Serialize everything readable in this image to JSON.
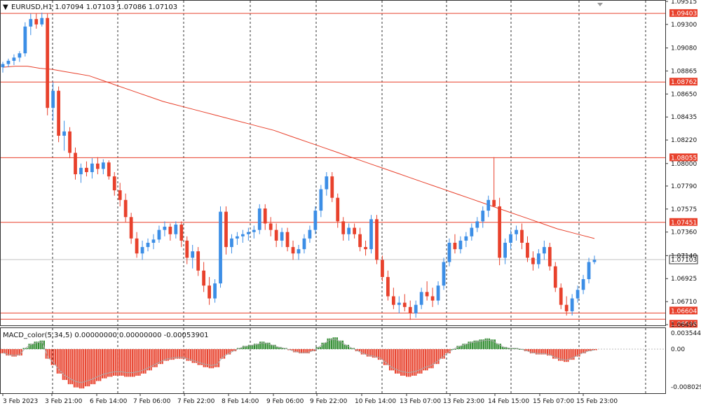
{
  "header": {
    "symbol_line": "EURUSD,H1  1.07094 1.07103 1.07086 1.07103"
  },
  "macd": {
    "label": "MACD_color(5,34,5) 0.00000000 0.00000000 -0.00053901",
    "axis": [
      "0.0035448",
      "0.00",
      "-0.0080295"
    ]
  },
  "price_axis": [
    "1.09515",
    "1.09300",
    "1.09080",
    "1.08865",
    "1.08650",
    "1.08435",
    "1.08220",
    "1.08000",
    "1.07790",
    "1.07575",
    "1.07360",
    "1.07140",
    "1.06925",
    "1.06710",
    "1.06495"
  ],
  "time_axis": [
    "3 Feb 2023",
    "3 Feb 21:00",
    "6 Feb 14:00",
    "7 Feb 06:00",
    "7 Feb 22:00",
    "8 Feb 14:00",
    "9 Feb 06:00",
    "9 Feb 22:00",
    "10 Feb 14:00",
    "13 Feb 07:00",
    "13 Feb 23:00",
    "14 Feb 15:00",
    "15 Feb 07:00",
    "15 Feb 23:00"
  ],
  "levels": [
    {
      "label": "1.09403",
      "price": 1.09403
    },
    {
      "label": "1.08762",
      "price": 1.08762
    },
    {
      "label": "1.08055",
      "price": 1.08055
    },
    {
      "label": "1.07451",
      "price": 1.07451
    },
    {
      "label": "1.06604",
      "price": 1.06604
    },
    {
      "label": "1.06546",
      "price": 1.06546
    }
  ],
  "current_price": {
    "label": "1.07103",
    "price": 1.07103
  },
  "colors": {
    "bull": "#3c8ee6",
    "bear": "#e8412c",
    "level": "#e8412c",
    "ma": "#e8412c",
    "macd_pos": "#2e8b2e",
    "macd_neg": "#e8412c",
    "grid": "#333333"
  },
  "chart_data": {
    "type": "candlestick",
    "title": "EURUSD,H1",
    "ylim": [
      1.06495,
      1.09515
    ],
    "candles": [
      {
        "o": 1.089,
        "h": 1.0895,
        "l": 1.0885,
        "c": 1.0893
      },
      {
        "o": 1.0893,
        "h": 1.0898,
        "l": 1.089,
        "c": 1.0896
      },
      {
        "o": 1.0896,
        "h": 1.0902,
        "l": 1.0892,
        "c": 1.0899
      },
      {
        "o": 1.0899,
        "h": 1.0905,
        "l": 1.0895,
        "c": 1.0903
      },
      {
        "o": 1.0903,
        "h": 1.0932,
        "l": 1.09,
        "c": 1.0928
      },
      {
        "o": 1.0928,
        "h": 1.094,
        "l": 1.092,
        "c": 1.0935
      },
      {
        "o": 1.0935,
        "h": 1.094,
        "l": 1.0926,
        "c": 1.093
      },
      {
        "o": 1.093,
        "h": 1.0941,
        "l": 1.0928,
        "c": 1.0936
      },
      {
        "o": 1.0936,
        "h": 1.094,
        "l": 1.0845,
        "c": 1.0852
      },
      {
        "o": 1.0852,
        "h": 1.0876,
        "l": 1.084,
        "c": 1.0868
      },
      {
        "o": 1.0868,
        "h": 1.0872,
        "l": 1.082,
        "c": 1.0826
      },
      {
        "o": 1.0826,
        "h": 1.084,
        "l": 1.0812,
        "c": 1.083
      },
      {
        "o": 1.083,
        "h": 1.0834,
        "l": 1.0805,
        "c": 1.081
      },
      {
        "o": 1.081,
        "h": 1.0815,
        "l": 1.0785,
        "c": 1.079
      },
      {
        "o": 1.079,
        "h": 1.08,
        "l": 1.0782,
        "c": 1.0796
      },
      {
        "o": 1.0796,
        "h": 1.0802,
        "l": 1.0788,
        "c": 1.0792
      },
      {
        "o": 1.0792,
        "h": 1.0805,
        "l": 1.0786,
        "c": 1.08
      },
      {
        "o": 1.08,
        "h": 1.0806,
        "l": 1.079,
        "c": 1.0795
      },
      {
        "o": 1.0795,
        "h": 1.0804,
        "l": 1.079,
        "c": 1.0801
      },
      {
        "o": 1.0801,
        "h": 1.0803,
        "l": 1.0785,
        "c": 1.0788
      },
      {
        "o": 1.0788,
        "h": 1.0792,
        "l": 1.077,
        "c": 1.0775
      },
      {
        "o": 1.0775,
        "h": 1.0782,
        "l": 1.076,
        "c": 1.0766
      },
      {
        "o": 1.0766,
        "h": 1.0772,
        "l": 1.0745,
        "c": 1.075
      },
      {
        "o": 1.075,
        "h": 1.0754,
        "l": 1.0725,
        "c": 1.073
      },
      {
        "o": 1.073,
        "h": 1.0736,
        "l": 1.0712,
        "c": 1.0716
      },
      {
        "o": 1.0716,
        "h": 1.0728,
        "l": 1.071,
        "c": 1.0722
      },
      {
        "o": 1.0722,
        "h": 1.073,
        "l": 1.0718,
        "c": 1.0726
      },
      {
        "o": 1.0726,
        "h": 1.0734,
        "l": 1.072,
        "c": 1.0729
      },
      {
        "o": 1.0729,
        "h": 1.0742,
        "l": 1.0726,
        "c": 1.0738
      },
      {
        "o": 1.0738,
        "h": 1.0746,
        "l": 1.0732,
        "c": 1.0741
      },
      {
        "o": 1.0741,
        "h": 1.0744,
        "l": 1.0728,
        "c": 1.0734
      },
      {
        "o": 1.0734,
        "h": 1.0746,
        "l": 1.073,
        "c": 1.0743
      },
      {
        "o": 1.0743,
        "h": 1.0746,
        "l": 1.0722,
        "c": 1.0728
      },
      {
        "o": 1.0728,
        "h": 1.0732,
        "l": 1.0706,
        "c": 1.0712
      },
      {
        "o": 1.0712,
        "h": 1.0724,
        "l": 1.0702,
        "c": 1.0718
      },
      {
        "o": 1.0718,
        "h": 1.0722,
        "l": 1.0695,
        "c": 1.07
      },
      {
        "o": 1.07,
        "h": 1.0708,
        "l": 1.068,
        "c": 1.0686
      },
      {
        "o": 1.0686,
        "h": 1.0694,
        "l": 1.0668,
        "c": 1.0674
      },
      {
        "o": 1.0674,
        "h": 1.0692,
        "l": 1.067,
        "c": 1.0688
      },
      {
        "o": 1.0688,
        "h": 1.076,
        "l": 1.0684,
        "c": 1.0755
      },
      {
        "o": 1.0755,
        "h": 1.076,
        "l": 1.0715,
        "c": 1.0722
      },
      {
        "o": 1.0722,
        "h": 1.0734,
        "l": 1.0716,
        "c": 1.073
      },
      {
        "o": 1.073,
        "h": 1.0736,
        "l": 1.0724,
        "c": 1.0732
      },
      {
        "o": 1.0732,
        "h": 1.0738,
        "l": 1.0726,
        "c": 1.0734
      },
      {
        "o": 1.0734,
        "h": 1.074,
        "l": 1.0728,
        "c": 1.0736
      },
      {
        "o": 1.0736,
        "h": 1.0742,
        "l": 1.073,
        "c": 1.0738
      },
      {
        "o": 1.0738,
        "h": 1.0762,
        "l": 1.0734,
        "c": 1.0758
      },
      {
        "o": 1.0758,
        "h": 1.0762,
        "l": 1.0738,
        "c": 1.0744
      },
      {
        "o": 1.0744,
        "h": 1.075,
        "l": 1.0732,
        "c": 1.0738
      },
      {
        "o": 1.0738,
        "h": 1.0744,
        "l": 1.0722,
        "c": 1.0728
      },
      {
        "o": 1.0728,
        "h": 1.074,
        "l": 1.0722,
        "c": 1.0736
      },
      {
        "o": 1.0736,
        "h": 1.074,
        "l": 1.0718,
        "c": 1.0722
      },
      {
        "o": 1.0722,
        "h": 1.0728,
        "l": 1.071,
        "c": 1.0716
      },
      {
        "o": 1.0716,
        "h": 1.0724,
        "l": 1.071,
        "c": 1.072
      },
      {
        "o": 1.072,
        "h": 1.0734,
        "l": 1.0716,
        "c": 1.073
      },
      {
        "o": 1.073,
        "h": 1.0742,
        "l": 1.0726,
        "c": 1.0738
      },
      {
        "o": 1.0738,
        "h": 1.076,
        "l": 1.0734,
        "c": 1.0756
      },
      {
        "o": 1.0756,
        "h": 1.078,
        "l": 1.075,
        "c": 1.0776
      },
      {
        "o": 1.0776,
        "h": 1.0792,
        "l": 1.077,
        "c": 1.0788
      },
      {
        "o": 1.0788,
        "h": 1.0792,
        "l": 1.0764,
        "c": 1.0768
      },
      {
        "o": 1.0768,
        "h": 1.0772,
        "l": 1.074,
        "c": 1.0746
      },
      {
        "o": 1.0746,
        "h": 1.075,
        "l": 1.0728,
        "c": 1.0734
      },
      {
        "o": 1.0734,
        "h": 1.0744,
        "l": 1.0728,
        "c": 1.074
      },
      {
        "o": 1.074,
        "h": 1.0744,
        "l": 1.073,
        "c": 1.0734
      },
      {
        "o": 1.0734,
        "h": 1.074,
        "l": 1.0718,
        "c": 1.0722
      },
      {
        "o": 1.0722,
        "h": 1.0728,
        "l": 1.0714,
        "c": 1.072
      },
      {
        "o": 1.072,
        "h": 1.0752,
        "l": 1.0716,
        "c": 1.0748
      },
      {
        "o": 1.0748,
        "h": 1.0752,
        "l": 1.0706,
        "c": 1.071
      },
      {
        "o": 1.071,
        "h": 1.0714,
        "l": 1.069,
        "c": 1.0694
      },
      {
        "o": 1.0694,
        "h": 1.07,
        "l": 1.0672,
        "c": 1.0676
      },
      {
        "o": 1.0676,
        "h": 1.0684,
        "l": 1.0664,
        "c": 1.0668
      },
      {
        "o": 1.0668,
        "h": 1.0676,
        "l": 1.066,
        "c": 1.067
      },
      {
        "o": 1.067,
        "h": 1.0678,
        "l": 1.0662,
        "c": 1.0666
      },
      {
        "o": 1.0666,
        "h": 1.0672,
        "l": 1.0654,
        "c": 1.066
      },
      {
        "o": 1.066,
        "h": 1.0672,
        "l": 1.0656,
        "c": 1.0668
      },
      {
        "o": 1.0668,
        "h": 1.0684,
        "l": 1.0664,
        "c": 1.068
      },
      {
        "o": 1.068,
        "h": 1.069,
        "l": 1.0672,
        "c": 1.0676
      },
      {
        "o": 1.0676,
        "h": 1.0684,
        "l": 1.0666,
        "c": 1.0672
      },
      {
        "o": 1.0672,
        "h": 1.069,
        "l": 1.0668,
        "c": 1.0686
      },
      {
        "o": 1.0686,
        "h": 1.0712,
        "l": 1.0682,
        "c": 1.0708
      },
      {
        "o": 1.0708,
        "h": 1.073,
        "l": 1.0704,
        "c": 1.0726
      },
      {
        "o": 1.0726,
        "h": 1.0734,
        "l": 1.0716,
        "c": 1.072
      },
      {
        "o": 1.072,
        "h": 1.0732,
        "l": 1.0716,
        "c": 1.0728
      },
      {
        "o": 1.0728,
        "h": 1.0736,
        "l": 1.0722,
        "c": 1.0732
      },
      {
        "o": 1.0732,
        "h": 1.0744,
        "l": 1.0728,
        "c": 1.074
      },
      {
        "o": 1.074,
        "h": 1.075,
        "l": 1.0736,
        "c": 1.0746
      },
      {
        "o": 1.0746,
        "h": 1.076,
        "l": 1.074,
        "c": 1.0756
      },
      {
        "o": 1.0756,
        "h": 1.077,
        "l": 1.075,
        "c": 1.0766
      },
      {
        "o": 1.0766,
        "h": 1.0806,
        "l": 1.076,
        "c": 1.076
      },
      {
        "o": 1.076,
        "h": 1.0768,
        "l": 1.0705,
        "c": 1.0712
      },
      {
        "o": 1.0712,
        "h": 1.073,
        "l": 1.0706,
        "c": 1.0726
      },
      {
        "o": 1.0726,
        "h": 1.0738,
        "l": 1.072,
        "c": 1.0734
      },
      {
        "o": 1.0734,
        "h": 1.0742,
        "l": 1.0728,
        "c": 1.0738
      },
      {
        "o": 1.0738,
        "h": 1.0744,
        "l": 1.072,
        "c": 1.0726
      },
      {
        "o": 1.0726,
        "h": 1.0732,
        "l": 1.0708,
        "c": 1.0712
      },
      {
        "o": 1.0712,
        "h": 1.0718,
        "l": 1.07,
        "c": 1.0706
      },
      {
        "o": 1.0706,
        "h": 1.072,
        "l": 1.0702,
        "c": 1.0716
      },
      {
        "o": 1.0716,
        "h": 1.0728,
        "l": 1.071,
        "c": 1.0722
      },
      {
        "o": 1.0722,
        "h": 1.0726,
        "l": 1.07,
        "c": 1.0704
      },
      {
        "o": 1.0704,
        "h": 1.0708,
        "l": 1.068,
        "c": 1.0684
      },
      {
        "o": 1.0684,
        "h": 1.0688,
        "l": 1.0664,
        "c": 1.0668
      },
      {
        "o": 1.0668,
        "h": 1.0676,
        "l": 1.0658,
        "c": 1.0662
      },
      {
        "o": 1.0662,
        "h": 1.0678,
        "l": 1.0658,
        "c": 1.0674
      },
      {
        "o": 1.0674,
        "h": 1.0686,
        "l": 1.067,
        "c": 1.0682
      },
      {
        "o": 1.0682,
        "h": 1.0696,
        "l": 1.0678,
        "c": 1.0692
      },
      {
        "o": 1.0692,
        "h": 1.0712,
        "l": 1.0688,
        "c": 1.0708
      },
      {
        "o": 1.0708,
        "h": 1.0714,
        "l": 1.0706,
        "c": 1.071
      }
    ],
    "ma": [
      1.089,
      1.0891,
      1.0891,
      1.0889,
      1.0888,
      1.0886,
      1.0884,
      1.0882,
      1.0878,
      1.0874,
      1.087,
      1.0866,
      1.0862,
      1.0858,
      1.0855,
      1.0852,
      1.0849,
      1.0846,
      1.0843,
      1.084,
      1.0837,
      1.0834,
      1.0831,
      1.0827,
      1.0823,
      1.0819,
      1.0815,
      1.0811,
      1.0807,
      1.0803,
      1.0799,
      1.0795,
      1.0791,
      1.0787,
      1.0783,
      1.0779,
      1.0775,
      1.0771,
      1.0767,
      1.0763,
      1.0759,
      1.0755,
      1.0751,
      1.0747,
      1.0743,
      1.0739,
      1.0736,
      1.0733,
      1.073
    ],
    "macd_hist": [
      -0.0008,
      -0.0012,
      -0.0014,
      -0.0012,
      0.0002,
      0.001,
      0.0014,
      0.0016,
      -0.0018,
      -0.003,
      -0.0046,
      -0.0058,
      -0.0066,
      -0.0072,
      -0.0074,
      -0.007,
      -0.0066,
      -0.006,
      -0.0055,
      -0.0052,
      -0.005,
      -0.005,
      -0.0052,
      -0.0052,
      -0.005,
      -0.0046,
      -0.004,
      -0.0034,
      -0.0028,
      -0.0022,
      -0.002,
      -0.0018,
      -0.0018,
      -0.0022,
      -0.0026,
      -0.003,
      -0.0034,
      -0.0036,
      -0.0034,
      -0.0018,
      -0.001,
      -0.0004,
      0.0002,
      0.0006,
      0.0008,
      0.001,
      0.0014,
      0.0012,
      0.0008,
      0.0004,
      0.0002,
      -0.0002,
      -0.0006,
      -0.0008,
      -0.0008,
      -0.0004,
      0.0004,
      0.0012,
      0.002,
      0.0022,
      0.0016,
      0.0008,
      0.0002,
      -0.0004,
      -0.001,
      -0.0014,
      -0.0016,
      -0.002,
      -0.003,
      -0.004,
      -0.0046,
      -0.005,
      -0.0052,
      -0.005,
      -0.0046,
      -0.004,
      -0.0036,
      -0.0028,
      -0.0018,
      -0.0008,
      0.0,
      0.0006,
      0.001,
      0.0014,
      0.0016,
      0.0018,
      0.002,
      0.0018,
      0.001,
      0.0004,
      0.0002,
      0.0002,
      0.0,
      -0.0004,
      -0.0008,
      -0.001,
      -0.001,
      -0.0012,
      -0.0018,
      -0.0022,
      -0.0024,
      -0.002,
      -0.0014,
      -0.0008,
      -0.0004,
      -0.0002
    ]
  }
}
